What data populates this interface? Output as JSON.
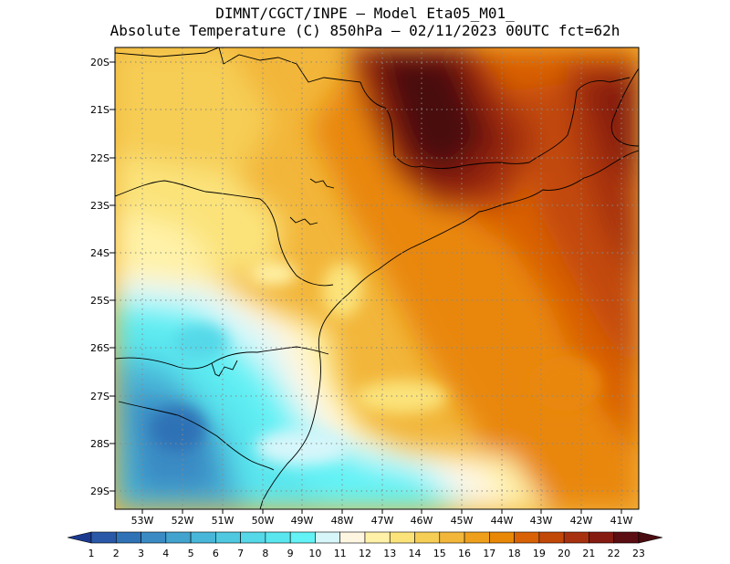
{
  "title": {
    "line1": "DIMNT/CGCT/INPE —  Model Eta05_M01_",
    "line2": "Absolute Temperature (C) 850hPa —  02/11/2023 00UTC fct=62h"
  },
  "map": {
    "lat_labels": [
      "20S",
      "21S",
      "22S",
      "23S",
      "24S",
      "25S",
      "26S",
      "27S",
      "28S",
      "29S"
    ],
    "lon_labels": [
      "53W",
      "52W",
      "51W",
      "50W",
      "49W",
      "48W",
      "47W",
      "46W",
      "45W",
      "44W",
      "43W",
      "42W",
      "41W"
    ]
  },
  "colorbar": {
    "labels": [
      "1",
      "2",
      "3",
      "4",
      "5",
      "6",
      "7",
      "8",
      "9",
      "10",
      "11",
      "12",
      "13",
      "14",
      "15",
      "16",
      "17",
      "18",
      "19",
      "20",
      "21",
      "22",
      "23"
    ],
    "colors": [
      "#1b3a8f",
      "#2a58a8",
      "#2f72b6",
      "#3a8bc4",
      "#41a3ce",
      "#48b6d8",
      "#4fc8e0",
      "#55d8e8",
      "#5ae6ee",
      "#63f2f5",
      "#d6f6fa",
      "#fff6e1",
      "#fff2a8",
      "#fbe37a",
      "#f6cd55",
      "#f2b63a",
      "#eea01c",
      "#e98707",
      "#d96106",
      "#c24808",
      "#a7310e",
      "#861b11",
      "#5b0d12",
      "#4a0c10"
    ]
  }
}
